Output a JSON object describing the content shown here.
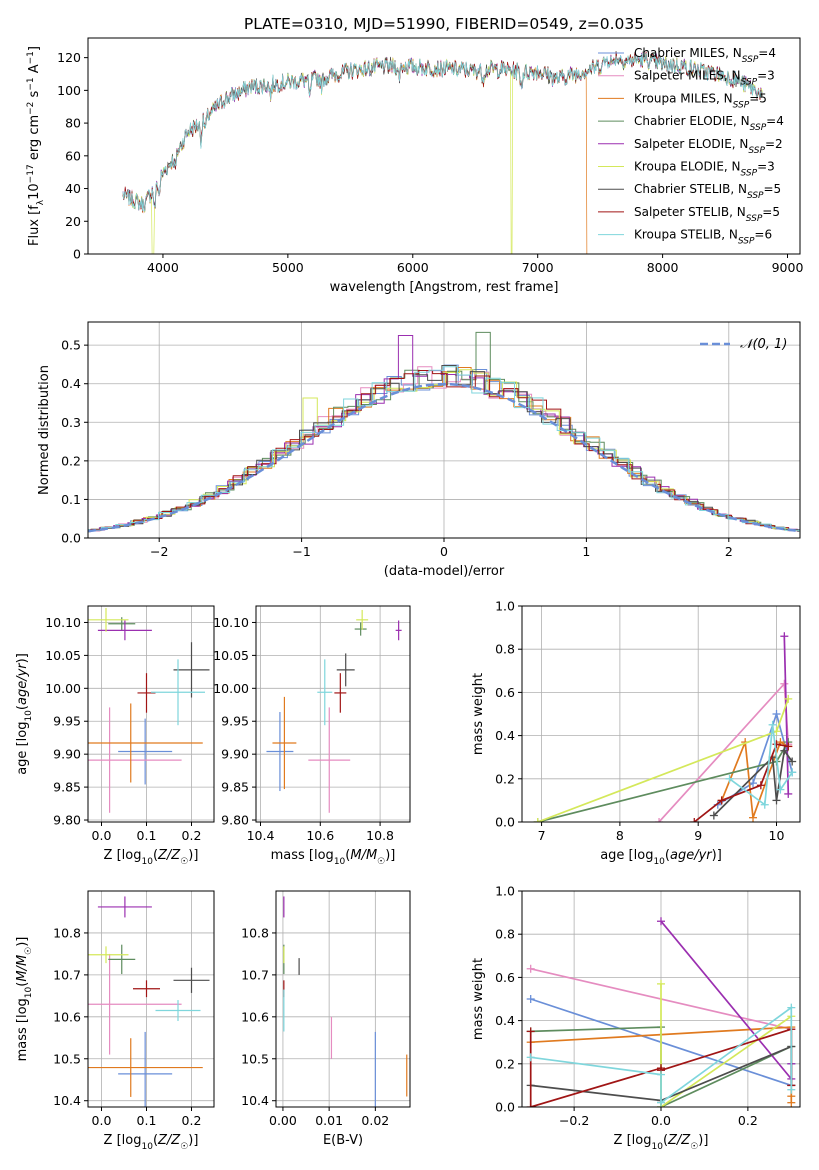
{
  "figure": {
    "title": "PLATE=0310, MJD=51990, FIBERID=0549, z=0.035"
  },
  "colors": {
    "Chabrier MILES": "#6a8fd8",
    "Salpeter MILES": "#e58cc0",
    "Kroupa MILES": "#e07a1f",
    "Chabrier ELODIE": "#5e8c5e",
    "Salpeter ELODIE": "#9b2fb0",
    "Kroupa ELODIE": "#d4e85a",
    "Chabrier STELIB": "#4d4d4d",
    "Salpeter STELIB": "#a01515",
    "Kroupa STELIB": "#7fd6dc"
  },
  "chart_data": [
    {
      "id": "spectrum",
      "type": "line",
      "xlabel": "wavelength [Angstrom, rest frame]",
      "ylabel": "Flux [f_λ 10^-17 erg cm^-2 s^-1 A^-1]",
      "xlim": [
        3400,
        9100
      ],
      "ylim": [
        0,
        132
      ],
      "xticks": [
        4000,
        5000,
        6000,
        7000,
        8000,
        9000
      ],
      "yticks": [
        0,
        20,
        40,
        60,
        80,
        100,
        120
      ],
      "grid": false,
      "legend_position": "right",
      "legend": [
        {
          "model": "Chabrier MILES",
          "nssp": "4"
        },
        {
          "model": "Salpeter MILES",
          "nssp": "3"
        },
        {
          "model": "Kroupa MILES",
          "nssp": "5"
        },
        {
          "model": "Chabrier ELODIE",
          "nssp": "4"
        },
        {
          "model": "Salpeter ELODIE",
          "nssp": "2"
        },
        {
          "model": "Kroupa ELODIE",
          "nssp": "3"
        },
        {
          "model": "Chabrier STELIB",
          "nssp": "5"
        },
        {
          "model": "Salpeter STELIB",
          "nssp": "5"
        },
        {
          "model": "Kroupa STELIB",
          "nssp": "6"
        }
      ],
      "continuum": [
        [
          3680,
          36
        ],
        [
          3850,
          30
        ],
        [
          3950,
          44
        ],
        [
          4100,
          60
        ],
        [
          4200,
          75
        ],
        [
          4300,
          80
        ],
        [
          4500,
          95
        ],
        [
          4700,
          102
        ],
        [
          4900,
          104
        ],
        [
          5100,
          106
        ],
        [
          5300,
          108
        ],
        [
          5500,
          112
        ],
        [
          5700,
          114
        ],
        [
          5900,
          115
        ],
        [
          6100,
          114
        ],
        [
          6300,
          113
        ],
        [
          6500,
          112
        ],
        [
          6700,
          113
        ],
        [
          6900,
          111
        ],
        [
          7000,
          112
        ],
        [
          7150,
          107
        ],
        [
          7300,
          110
        ],
        [
          7500,
          115
        ],
        [
          7600,
          121
        ],
        [
          7700,
          118
        ],
        [
          7850,
          119
        ],
        [
          8000,
          116
        ],
        [
          8150,
          115
        ],
        [
          8300,
          112
        ],
        [
          8450,
          110
        ],
        [
          8600,
          106
        ],
        [
          8750,
          100
        ],
        [
          8800,
          97
        ]
      ],
      "dropouts": [
        {
          "model": "Kroupa ELODIE",
          "x": 3920
        },
        {
          "model": "Kroupa ELODIE",
          "x": 6790
        },
        {
          "model": "Kroupa MILES",
          "x": 7400
        }
      ]
    },
    {
      "id": "residuals",
      "type": "histogram",
      "xlabel": "(data-model)/error",
      "ylabel": "Normed distribution",
      "xlim": [
        -2.5,
        2.5
      ],
      "ylim": [
        0,
        0.56
      ],
      "xticks": [
        -2,
        -1,
        0,
        1,
        2
      ],
      "yticks": [
        0.0,
        0.1,
        0.2,
        0.3,
        0.4,
        0.5
      ],
      "grid": true,
      "bin_width": 0.1,
      "reference": {
        "name": "𝒩(0, 1)",
        "mean": 0,
        "sd": 1
      },
      "bin_offsets": [
        0.0,
        0.03,
        -0.02,
        0.05,
        -0.04,
        0.02,
        -0.03,
        0.04,
        -0.01
      ],
      "peak_bars": [
        {
          "model": "Salpeter ELODIE",
          "x": -0.3,
          "height": 0.525
        },
        {
          "model": "Chabrier ELODIE",
          "x": 0.3,
          "height": 0.533
        },
        {
          "model": "Kroupa ELODIE",
          "x": -0.9,
          "height": 0.363
        }
      ]
    },
    {
      "id": "age_vs_Z",
      "type": "errorbar",
      "xlabel": "Z [log10(Z/Z☉)]",
      "ylabel": "age  [log10(age/yr)]",
      "xlim": [
        -0.03,
        0.25
      ],
      "ylim": [
        9.797,
        10.125
      ],
      "xticks": [
        0.0,
        0.1,
        0.2
      ],
      "yticks": [
        9.8,
        9.85,
        9.9,
        9.95,
        10.0,
        10.05,
        10.1
      ],
      "grid": true,
      "points": [
        {
          "model": "Chabrier MILES",
          "x": 0.097,
          "y": 9.904,
          "xerr": 0.06,
          "yerr": 0.05
        },
        {
          "model": "Salpeter MILES",
          "x": 0.018,
          "y": 9.891,
          "xerr": 0.16,
          "yerr": 0.08
        },
        {
          "model": "Kroupa MILES",
          "x": 0.065,
          "y": 9.917,
          "xerr": 0.16,
          "yerr": 0.06
        },
        {
          "model": "Chabrier ELODIE",
          "x": 0.045,
          "y": 10.098,
          "xerr": 0.03,
          "yerr": 0.01
        },
        {
          "model": "Salpeter ELODIE",
          "x": 0.052,
          "y": 10.088,
          "xerr": 0.06,
          "yerr": 0.015
        },
        {
          "model": "Kroupa ELODIE",
          "x": 0.01,
          "y": 10.104,
          "xerr": 0.05,
          "yerr": 0.018
        },
        {
          "model": "Chabrier STELIB",
          "x": 0.2,
          "y": 10.028,
          "xerr": 0.04,
          "yerr": 0.042
        },
        {
          "model": "Salpeter STELIB",
          "x": 0.1,
          "y": 9.993,
          "xerr": 0.02,
          "yerr": 0.03
        },
        {
          "model": "Kroupa STELIB",
          "x": 0.17,
          "y": 9.994,
          "xerr": 0.06,
          "yerr": 0.05
        }
      ]
    },
    {
      "id": "age_vs_mass",
      "type": "errorbar",
      "xlabel": "mass [log10(M/M☉)]",
      "ylabel": "",
      "xlim": [
        10.385,
        10.9
      ],
      "ylim": [
        9.797,
        10.125
      ],
      "xticks": [
        10.4,
        10.6,
        10.8
      ],
      "yticks": [
        9.8,
        9.85,
        9.9,
        9.95,
        10.0,
        10.05,
        10.1
      ],
      "grid": true,
      "points": [
        {
          "model": "Chabrier MILES",
          "x": 10.465,
          "y": 9.904,
          "xerr": 0.045,
          "yerr": 0.06
        },
        {
          "model": "Salpeter MILES",
          "x": 10.63,
          "y": 9.891,
          "xerr": 0.07,
          "yerr": 0.08
        },
        {
          "model": "Kroupa MILES",
          "x": 10.48,
          "y": 9.917,
          "xerr": 0.04,
          "yerr": 0.07
        },
        {
          "model": "Chabrier ELODIE",
          "x": 10.735,
          "y": 10.09,
          "xerr": 0.02,
          "yerr": 0.01
        },
        {
          "model": "Salpeter ELODIE",
          "x": 10.862,
          "y": 10.088,
          "xerr": 0.01,
          "yerr": 0.015
        },
        {
          "model": "Kroupa ELODIE",
          "x": 10.74,
          "y": 10.104,
          "xerr": 0.02,
          "yerr": 0.015
        },
        {
          "model": "Chabrier STELIB",
          "x": 10.685,
          "y": 10.028,
          "xerr": 0.03,
          "yerr": 0.025
        },
        {
          "model": "Salpeter STELIB",
          "x": 10.667,
          "y": 9.993,
          "xerr": 0.02,
          "yerr": 0.03
        },
        {
          "model": "Kroupa STELIB",
          "x": 10.615,
          "y": 9.994,
          "xerr": 0.025,
          "yerr": 0.05
        }
      ]
    },
    {
      "id": "weight_vs_age",
      "type": "line",
      "xlabel": "age  [log10(age/yr)]",
      "ylabel": "mass weight",
      "xlim": [
        6.75,
        10.3
      ],
      "ylim": [
        0,
        1.0
      ],
      "xticks": [
        7,
        8,
        9,
        10
      ],
      "yticks": [
        0.0,
        0.2,
        0.4,
        0.6,
        0.8,
        1.0
      ],
      "grid": true,
      "series": [
        {
          "model": "Chabrier MILES",
          "x": [
            9.25,
            9.7,
            10.0,
            10.2
          ],
          "y": [
            0.08,
            0.18,
            0.5,
            0.23
          ]
        },
        {
          "model": "Salpeter MILES",
          "x": [
            8.5,
            10.1,
            10.15
          ],
          "y": [
            0.0,
            0.64,
            0.36
          ]
        },
        {
          "model": "Kroupa MILES",
          "x": [
            9.3,
            9.6,
            9.7,
            10.05,
            10.15
          ],
          "y": [
            0.1,
            0.37,
            0.02,
            0.37,
            0.35
          ]
        },
        {
          "model": "Chabrier ELODIE",
          "x": [
            6.95,
            10.0,
            10.15
          ],
          "y": [
            0.0,
            0.28,
            0.37
          ]
        },
        {
          "model": "Salpeter ELODIE",
          "x": [
            10.1,
            10.15
          ],
          "y": [
            0.86,
            0.13
          ]
        },
        {
          "model": "Kroupa ELODIE",
          "x": [
            6.95,
            10.0,
            10.15
          ],
          "y": [
            0.0,
            0.42,
            0.57
          ]
        },
        {
          "model": "Chabrier STELIB",
          "x": [
            9.2,
            9.95,
            10.0,
            10.1,
            10.2
          ],
          "y": [
            0.03,
            0.3,
            0.1,
            0.33,
            0.28
          ]
        },
        {
          "model": "Salpeter STELIB",
          "x": [
            8.95,
            9.3,
            9.8,
            10.0,
            10.15
          ],
          "y": [
            0.0,
            0.1,
            0.17,
            0.36,
            0.35
          ]
        },
        {
          "model": "Kroupa STELIB",
          "x": [
            9.4,
            9.85,
            9.95,
            10.05,
            10.2
          ],
          "y": [
            0.2,
            0.08,
            0.45,
            0.15,
            0.23
          ]
        }
      ]
    },
    {
      "id": "mass_vs_Z",
      "type": "errorbar",
      "xlabel": "Z [log10(Z/Z☉)]",
      "ylabel": "mass [log10(M/M☉)]",
      "xlim": [
        -0.03,
        0.25
      ],
      "ylim": [
        10.385,
        10.9
      ],
      "xticks": [
        0.0,
        0.1,
        0.2
      ],
      "yticks": [
        10.4,
        10.5,
        10.6,
        10.7,
        10.8
      ],
      "grid": true,
      "points": [
        {
          "model": "Chabrier MILES",
          "x": 0.097,
          "y": 10.464,
          "xerr": 0.06,
          "yerr": 0.1
        },
        {
          "model": "Salpeter MILES",
          "x": 0.018,
          "y": 10.63,
          "xerr": 0.16,
          "yerr": 0.12
        },
        {
          "model": "Kroupa MILES",
          "x": 0.065,
          "y": 10.479,
          "xerr": 0.16,
          "yerr": 0.07
        },
        {
          "model": "Chabrier ELODIE",
          "x": 0.045,
          "y": 10.737,
          "xerr": 0.03,
          "yerr": 0.035
        },
        {
          "model": "Salpeter ELODIE",
          "x": 0.052,
          "y": 10.862,
          "xerr": 0.06,
          "yerr": 0.025
        },
        {
          "model": "Kroupa ELODIE",
          "x": 0.01,
          "y": 10.748,
          "xerr": 0.05,
          "yerr": 0.02
        },
        {
          "model": "Chabrier STELIB",
          "x": 0.2,
          "y": 10.687,
          "xerr": 0.04,
          "yerr": 0.03
        },
        {
          "model": "Salpeter STELIB",
          "x": 0.1,
          "y": 10.667,
          "xerr": 0.03,
          "yerr": 0.02
        },
        {
          "model": "Kroupa STELIB",
          "x": 0.17,
          "y": 10.615,
          "xerr": 0.05,
          "yerr": 0.025
        }
      ]
    },
    {
      "id": "mass_vs_EBV",
      "type": "errorbar",
      "xlabel": "E(B-V)",
      "ylabel": "",
      "xlim": [
        -0.0015,
        0.0275
      ],
      "ylim": [
        10.385,
        10.9
      ],
      "xticks": [
        0.0,
        0.01,
        0.02
      ],
      "yticks": [
        10.4,
        10.5,
        10.6,
        10.7,
        10.8
      ],
      "grid": true,
      "points": [
        {
          "model": "Chabrier MILES",
          "x": 0.02,
          "y": 10.464,
          "xerr": 0,
          "yerr": 0.1
        },
        {
          "model": "Salpeter MILES",
          "x": 0.0105,
          "y": 10.55,
          "xerr": 0,
          "yerr": 0.05
        },
        {
          "model": "Kroupa MILES",
          "x": 0.0268,
          "y": 10.46,
          "xerr": 0,
          "yerr": 0.05
        },
        {
          "model": "Chabrier ELODIE",
          "x": 0.0002,
          "y": 10.737,
          "xerr": 0,
          "yerr": 0.035
        },
        {
          "model": "Salpeter ELODIE",
          "x": 0.0002,
          "y": 10.862,
          "xerr": 0,
          "yerr": 0.025
        },
        {
          "model": "Kroupa ELODIE",
          "x": 0.0002,
          "y": 10.748,
          "xerr": 0,
          "yerr": 0.02
        },
        {
          "model": "Chabrier STELIB",
          "x": 0.0035,
          "y": 10.72,
          "xerr": 0,
          "yerr": 0.02
        },
        {
          "model": "Salpeter STELIB",
          "x": 0.0002,
          "y": 10.667,
          "xerr": 0,
          "yerr": 0.02
        },
        {
          "model": "Kroupa STELIB",
          "x": 0.0002,
          "y": 10.615,
          "xerr": 0,
          "yerr": 0.05
        }
      ]
    },
    {
      "id": "weight_vs_Z",
      "type": "line",
      "xlabel": "Z [log10(Z/Z☉)]",
      "ylabel": "mass weight",
      "xlim": [
        -0.32,
        0.32
      ],
      "ylim": [
        0,
        1.0
      ],
      "xticks": [
        -0.2,
        0.0,
        0.2
      ],
      "yticks": [
        0.0,
        0.2,
        0.4,
        0.6,
        0.8,
        1.0
      ],
      "grid": true,
      "series": [
        {
          "model": "Chabrier MILES",
          "x": [
            -0.3,
            0.3,
            0.3
          ],
          "y": [
            0.5,
            0.1,
            0.2
          ]
        },
        {
          "model": "Salpeter MILES",
          "x": [
            -0.3,
            0.3,
            0.3
          ],
          "y": [
            0.64,
            0.36,
            0.1
          ]
        },
        {
          "model": "Kroupa MILES",
          "x": [
            -0.3,
            0.3,
            0.3,
            0.3
          ],
          "y": [
            0.3,
            0.37,
            0.02,
            0.05
          ]
        },
        {
          "model": "Chabrier ELODIE",
          "x": [
            -0.3,
            0.0,
            0.0,
            0.3
          ],
          "y": [
            0.35,
            0.37,
            0.0,
            0.28
          ]
        },
        {
          "model": "Salpeter ELODIE",
          "x": [
            0.0,
            0.3,
            0.3
          ],
          "y": [
            0.86,
            0.13,
            0.2
          ]
        },
        {
          "model": "Kroupa ELODIE",
          "x": [
            0.0,
            0.0,
            0.3
          ],
          "y": [
            0.57,
            0.0,
            0.42
          ]
        },
        {
          "model": "Chabrier STELIB",
          "x": [
            -0.3,
            0.0,
            0.3,
            0.3
          ],
          "y": [
            0.1,
            0.03,
            0.28,
            0.1
          ]
        },
        {
          "model": "Salpeter STELIB",
          "x": [
            -0.3,
            -0.3,
            0.0,
            0.0,
            0.3,
            0.3
          ],
          "y": [
            0.35,
            0.0,
            0.18,
            0.17,
            0.36,
            0.1
          ]
        },
        {
          "model": "Kroupa STELIB",
          "x": [
            -0.3,
            0.0,
            0.0,
            0.3,
            0.3
          ],
          "y": [
            0.23,
            0.15,
            0.02,
            0.46,
            0.08
          ]
        }
      ]
    }
  ]
}
